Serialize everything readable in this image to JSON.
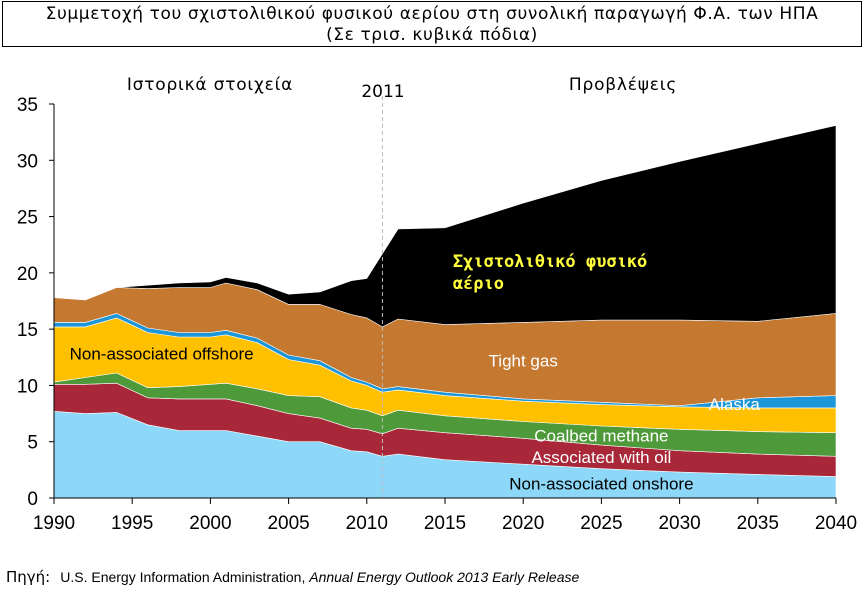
{
  "title": "Συμμετοχή του σχιστολιθικού φυσικού αερίου στη συνολική παραγωγή Φ.Α. των ΗΠΑ",
  "subtitle": "(Σε τρισ. κυβικά πόδια)",
  "source": {
    "label": "Πηγή:",
    "text": "U.S. Energy Information Administration, ",
    "publication": "Annual Energy Outlook 2013 Early Release"
  },
  "chart_data": {
    "type": "area",
    "stacked": true,
    "title": "Συμμετοχή του σχιστολιθικού φυσικού αερίου στη συνολική παραγωγή Φ.Α. των ΗΠΑ",
    "subtitle": "(Σε τρισ. κυβικά πόδια)",
    "xlim": [
      1990,
      2040
    ],
    "ylim": [
      0,
      35
    ],
    "x_ticks": [
      1990,
      1995,
      2000,
      2005,
      2010,
      2015,
      2020,
      2025,
      2030,
      2035,
      2040
    ],
    "y_ticks": [
      0,
      5,
      10,
      15,
      20,
      25,
      30,
      35
    ],
    "grid": false,
    "divider_year": 2011,
    "divider_label": "2011",
    "region_labels": {
      "historical": "Ιστορικά στοιχεία",
      "projections": "Προβλέψεις"
    },
    "x": [
      1990,
      1992,
      1994,
      1996,
      1998,
      2000,
      2001,
      2003,
      2005,
      2007,
      2009,
      2010,
      2011,
      2012,
      2015,
      2020,
      2025,
      2030,
      2035,
      2040
    ],
    "series": [
      {
        "name": "Non-associated onshore",
        "color": "#8dd8f8",
        "label_color": "#000000",
        "label_weight": "normal",
        "values": [
          7.7,
          7.5,
          7.6,
          6.5,
          6.0,
          6.0,
          6.0,
          5.5,
          5.0,
          5.0,
          4.2,
          4.1,
          3.7,
          3.9,
          3.4,
          3.0,
          2.6,
          2.3,
          2.1,
          1.9
        ]
      },
      {
        "name": "Associated with oil",
        "color": "#a8283a",
        "label_color": "#ffffff",
        "label_weight": "normal",
        "values": [
          2.4,
          2.6,
          2.6,
          2.4,
          2.8,
          2.8,
          2.8,
          2.7,
          2.5,
          2.1,
          2.0,
          2.0,
          2.0,
          2.3,
          2.4,
          2.3,
          2.1,
          1.9,
          1.8,
          1.8
        ]
      },
      {
        "name": "Coalbed methane",
        "color": "#4e9a3a",
        "label_color": "#ffffff",
        "label_weight": "normal",
        "values": [
          0.2,
          0.6,
          0.9,
          0.9,
          1.1,
          1.3,
          1.4,
          1.5,
          1.6,
          1.9,
          1.8,
          1.7,
          1.6,
          1.6,
          1.5,
          1.5,
          1.7,
          1.9,
          2.0,
          2.1
        ]
      },
      {
        "name": "Non-associated offshore",
        "color": "#ffc000",
        "label_color": "#000000",
        "label_weight": "normal",
        "values": [
          4.9,
          4.5,
          4.9,
          4.9,
          4.4,
          4.2,
          4.3,
          4.1,
          3.2,
          2.8,
          2.4,
          2.2,
          2.1,
          1.8,
          1.8,
          1.8,
          1.9,
          2.0,
          2.1,
          2.2
        ]
      },
      {
        "name": "Alaska",
        "color": "#1c96d8",
        "label_color": "#ffffff",
        "label_weight": "normal",
        "values": [
          0.4,
          0.4,
          0.4,
          0.4,
          0.4,
          0.4,
          0.4,
          0.4,
          0.4,
          0.4,
          0.3,
          0.3,
          0.3,
          0.3,
          0.3,
          0.2,
          0.2,
          0.1,
          0.9,
          1.1
        ]
      },
      {
        "name": "Tight gas",
        "color": "#c47830",
        "label_color": "#ffffff",
        "label_weight": "normal",
        "values": [
          2.2,
          2.0,
          2.3,
          3.5,
          4.0,
          4.0,
          4.2,
          4.3,
          4.5,
          5.0,
          5.6,
          5.7,
          5.5,
          6.0,
          6.0,
          6.8,
          7.3,
          7.6,
          6.8,
          7.3
        ]
      },
      {
        "name": "Σχιστολιθικό φυσικό αέριο",
        "color": "#000000",
        "label_color": "#ffff3c",
        "label_weight": "bold",
        "values": [
          0.0,
          0.0,
          0.0,
          0.3,
          0.4,
          0.5,
          0.5,
          0.6,
          0.9,
          1.1,
          3.0,
          3.5,
          6.5,
          8.0,
          8.6,
          10.6,
          12.4,
          14.1,
          15.8,
          16.7
        ]
      }
    ]
  }
}
